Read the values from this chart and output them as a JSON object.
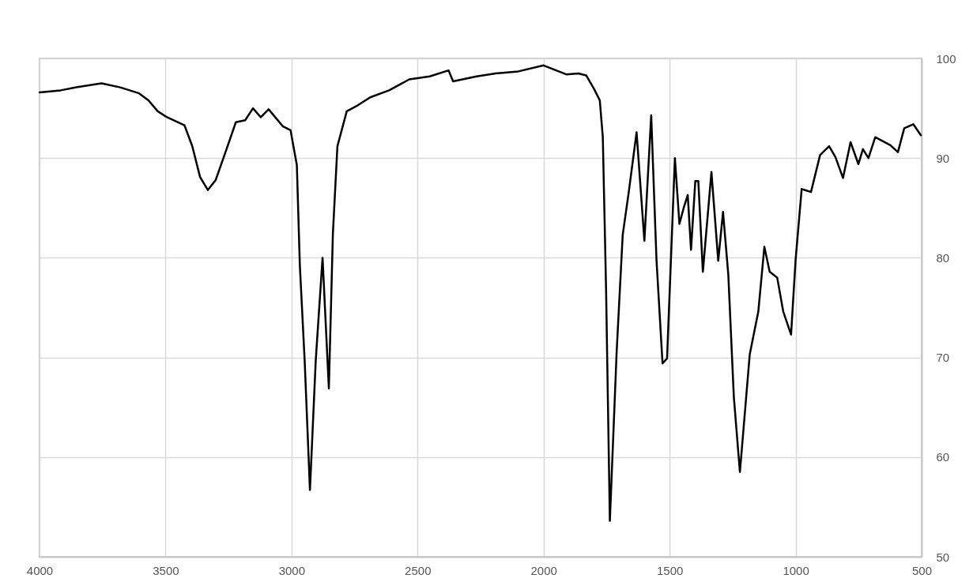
{
  "chart_data": {
    "type": "line",
    "x": [
      4000,
      3916,
      3854,
      3754,
      3680,
      3605,
      3568,
      3531,
      3494,
      3425,
      3394,
      3363,
      3332,
      3301,
      3258,
      3221,
      3184,
      3153,
      3122,
      3091,
      3035,
      3004,
      2979,
      2967,
      2948,
      2927,
      2904,
      2877,
      2852,
      2836,
      2818,
      2781,
      2737,
      2688,
      2613,
      2533,
      2452,
      2377,
      2359,
      2266,
      2191,
      2100,
      2000,
      1950,
      1910,
      1862,
      1831,
      1801,
      1777,
      1765,
      1752,
      1737,
      1710,
      1686,
      1662,
      1631,
      1600,
      1573,
      1552,
      1528,
      1510,
      1479,
      1461,
      1443,
      1428,
      1415,
      1398,
      1386,
      1368,
      1334,
      1307,
      1288,
      1267,
      1245,
      1221,
      1182,
      1148,
      1124,
      1103,
      1073,
      1049,
      1018,
      1000,
      976,
      939,
      903,
      867,
      842,
      812,
      782,
      751,
      733,
      711,
      684,
      624,
      594,
      569,
      533,
      503
    ],
    "series": [
      {
        "color": "#000000",
        "values": [
          96.6,
          96.8,
          97.1,
          97.5,
          97.1,
          96.5,
          95.8,
          94.7,
          94.1,
          93.3,
          91.2,
          88.1,
          86.8,
          87.8,
          90.9,
          93.6,
          93.8,
          95.0,
          94.1,
          94.9,
          93.2,
          92.8,
          89.3,
          79.2,
          69.7,
          56.7,
          69.7,
          80.0,
          66.9,
          82.4,
          91.2,
          94.7,
          95.3,
          96.1,
          96.8,
          97.9,
          98.2,
          98.8,
          97.7,
          98.2,
          98.5,
          98.7,
          99.3,
          98.8,
          98.4,
          98.5,
          98.3,
          97.0,
          95.8,
          92.1,
          76.8,
          53.6,
          70.6,
          82.3,
          86.6,
          92.6,
          81.7,
          94.3,
          79.8,
          69.4,
          69.9,
          90.0,
          83.4,
          85.1,
          86.3,
          80.8,
          87.7,
          87.7,
          78.6,
          88.6,
          79.7,
          84.6,
          78.3,
          66.0,
          58.5,
          70.3,
          74.6,
          81.1,
          78.6,
          78.0,
          74.6,
          72.3,
          79.8,
          86.9,
          86.6,
          90.3,
          91.2,
          90.1,
          88.0,
          91.6,
          89.4,
          90.9,
          90.0,
          92.1,
          91.3,
          90.6,
          93.0,
          93.4,
          92.3
        ]
      }
    ],
    "xlim": [
      4000,
      500
    ],
    "xticks": [
      4000,
      3500,
      3000,
      2500,
      2000,
      1500,
      1000,
      500
    ],
    "ylim": [
      50,
      100
    ],
    "yticks": [
      50,
      60,
      70,
      80,
      90,
      100
    ],
    "grid": true,
    "line_style": "solid",
    "marker": "none"
  }
}
